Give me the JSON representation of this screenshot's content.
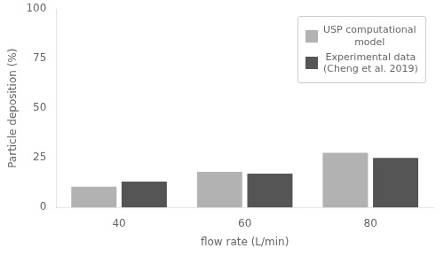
{
  "chart_data": {
    "type": "bar",
    "categories": [
      "40",
      "60",
      "80"
    ],
    "series": [
      {
        "name": "USP computational\nmodel",
        "color": "#b2b2b2",
        "values": [
          10.5,
          18.0,
          27.5
        ]
      },
      {
        "name": "Experimental data\n(Cheng et al. 2019)",
        "color": "#555555",
        "values": [
          13.0,
          17.0,
          25.0
        ]
      }
    ],
    "xlabel": "flow rate (L/min)",
    "ylabel": "Particle deposition (%)",
    "ylim": [
      0,
      100
    ],
    "yticks": [
      0,
      25,
      50,
      75,
      100
    ],
    "grid": false,
    "legend": "upper right"
  }
}
